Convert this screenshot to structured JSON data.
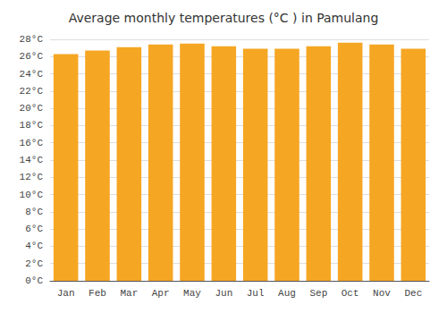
{
  "chart_data": {
    "type": "bar",
    "title": "Average monthly temperatures (°C ) in Pamulang",
    "categories": [
      "Jan",
      "Feb",
      "Mar",
      "Apr",
      "May",
      "Jun",
      "Jul",
      "Aug",
      "Sep",
      "Oct",
      "Nov",
      "Dec"
    ],
    "values": [
      26.3,
      26.7,
      27.1,
      27.4,
      27.5,
      27.2,
      26.9,
      26.9,
      27.2,
      27.6,
      27.4,
      26.9
    ],
    "color": "#F5A623",
    "ylim": [
      0,
      28
    ],
    "yticks": [
      {
        "value": 0,
        "label": "0°C"
      },
      {
        "value": 2,
        "label": "2°C"
      },
      {
        "value": 4,
        "label": "4°C"
      },
      {
        "value": 6,
        "label": "6°C"
      },
      {
        "value": 8,
        "label": "8°C"
      },
      {
        "value": 10,
        "label": "10°C"
      },
      {
        "value": 12,
        "label": "12°C"
      },
      {
        "value": 14,
        "label": "14°C"
      },
      {
        "value": 16,
        "label": "16°C"
      },
      {
        "value": 18,
        "label": "18°C"
      },
      {
        "value": 20,
        "label": "20°C"
      },
      {
        "value": 22,
        "label": "22°C"
      },
      {
        "value": 24,
        "label": "24°C"
      },
      {
        "value": 26,
        "label": "26°C"
      },
      {
        "value": 28,
        "label": "28°C"
      }
    ],
    "grid": true
  }
}
